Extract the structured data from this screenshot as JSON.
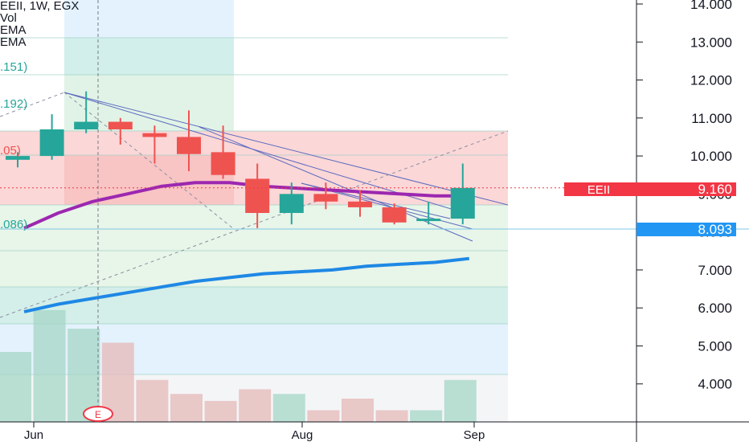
{
  "header": {
    "symbol_line": "EEII, 1W, EGX",
    "vol_label": "Vol",
    "ema_label_1": "EMA",
    "ema_label_2": "EMA"
  },
  "colors": {
    "up": "#26a69a",
    "down": "#ef5350",
    "ema_fast": "#9c27b0",
    "ema_slow": "#1e88e5",
    "price_tag": "#f23645",
    "level_tag": "#2196f3"
  },
  "price_tags": {
    "symbol": "EEII",
    "last_price": "9.160",
    "level_price": "8.093"
  },
  "event_marker": "E",
  "fib_labels": [
    ".151)",
    ".192)",
    ".05)",
    ".086)"
  ],
  "chart_data": {
    "type": "candlestick",
    "title": "EEII, 1W, EGX",
    "y_axis_side": "right",
    "ylim": [
      3.0,
      14.0
    ],
    "y_ticks": [
      4,
      5,
      6,
      7,
      8,
      9,
      10,
      11,
      12,
      13,
      14
    ],
    "y_tick_labels": [
      "4.000",
      "5.000",
      "6.000",
      "7.000",
      "8.000",
      "9.000",
      "10.000",
      "11.000",
      "12.000",
      "13.000",
      "14.000"
    ],
    "x_labels": [
      "Jun",
      "Aug",
      "Sep"
    ],
    "candles": [
      {
        "o": 9.9,
        "h": 10.1,
        "l": 9.7,
        "c": 10.0
      },
      {
        "o": 10.0,
        "h": 11.1,
        "l": 9.9,
        "c": 10.7
      },
      {
        "o": 10.7,
        "h": 11.7,
        "l": 10.6,
        "c": 10.9
      },
      {
        "o": 10.9,
        "h": 11.0,
        "l": 10.3,
        "c": 10.7
      },
      {
        "o": 10.6,
        "h": 10.8,
        "l": 9.8,
        "c": 10.5
      },
      {
        "o": 10.5,
        "h": 11.2,
        "l": 9.6,
        "c": 10.05
      },
      {
        "o": 10.1,
        "h": 10.8,
        "l": 9.4,
        "c": 9.5
      },
      {
        "o": 9.4,
        "h": 9.8,
        "l": 8.1,
        "c": 8.5
      },
      {
        "o": 8.5,
        "h": 9.3,
        "l": 8.2,
        "c": 9.0
      },
      {
        "o": 9.0,
        "h": 9.3,
        "l": 8.6,
        "c": 8.8
      },
      {
        "o": 8.8,
        "h": 9.1,
        "l": 8.4,
        "c": 8.65
      },
      {
        "o": 8.65,
        "h": 8.75,
        "l": 8.2,
        "c": 8.25
      },
      {
        "o": 8.3,
        "h": 8.8,
        "l": 8.2,
        "c": 8.35
      },
      {
        "o": 8.35,
        "h": 9.8,
        "l": 8.2,
        "c": 9.16
      }
    ],
    "volume": [
      1.5,
      2.4,
      2.0,
      1.7,
      0.9,
      0.6,
      0.45,
      0.7,
      0.6,
      0.25,
      0.5,
      0.25,
      0.25,
      0.9
    ],
    "series": [
      {
        "name": "EMA",
        "values": [
          8.1,
          8.5,
          8.8,
          9.0,
          9.2,
          9.3,
          9.3,
          9.2,
          9.15,
          9.1,
          9.05,
          9.0,
          8.95,
          8.95
        ]
      },
      {
        "name": "EMA",
        "values": [
          5.9,
          6.1,
          6.25,
          6.4,
          6.55,
          6.7,
          6.8,
          6.9,
          6.95,
          7.0,
          7.1,
          7.15,
          7.2,
          7.3
        ]
      }
    ],
    "last_price": 9.16,
    "horizontal_level": 8.093,
    "grid": false
  }
}
